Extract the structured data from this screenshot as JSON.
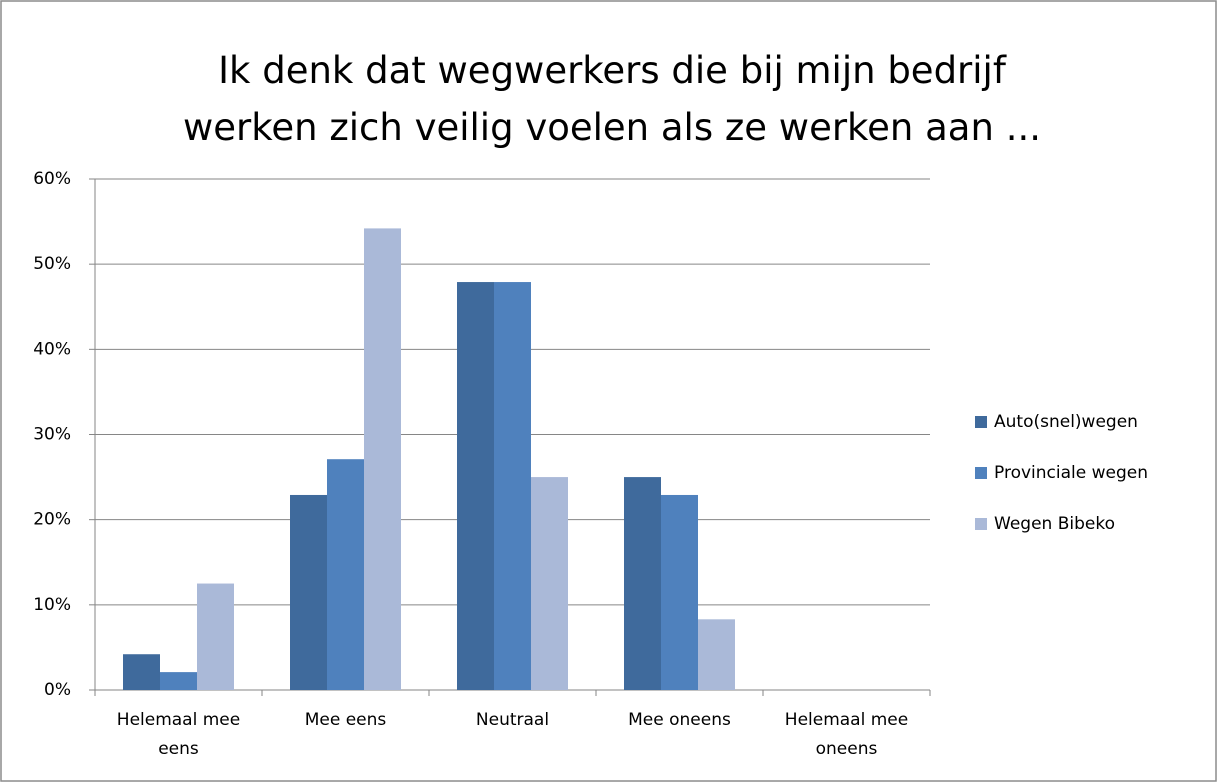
{
  "chart_data": {
    "type": "bar",
    "title": "Ik denk dat wegwerkers die bij mijn bedrijf werken zich veilig voelen als ze werken aan ...",
    "categories": [
      "Helemaal mee eens",
      "Mee eens",
      "Neutraal",
      "Mee oneens",
      "Helemaal mee oneens"
    ],
    "series": [
      {
        "name": "Auto(snel)wegen",
        "color": "#3f6a9c",
        "values": [
          4.2,
          22.9,
          47.9,
          25,
          0
        ]
      },
      {
        "name": "Provinciale wegen",
        "color": "#4f81bd",
        "values": [
          2.1,
          27.1,
          47.9,
          22.9,
          0
        ]
      },
      {
        "name": "Wegen Bibeko",
        "color": "#aab9d8",
        "values": [
          12.5,
          54.2,
          25,
          8.3,
          0
        ]
      }
    ],
    "ylim": [
      0,
      60
    ],
    "yticks": [
      {
        "value": 0,
        "label": "0%"
      },
      {
        "value": 10,
        "label": "10%"
      },
      {
        "value": 20,
        "label": "20%"
      },
      {
        "value": 30,
        "label": "30%"
      },
      {
        "value": 40,
        "label": "40%"
      },
      {
        "value": 50,
        "label": "50%"
      },
      {
        "value": 60,
        "label": "60%"
      }
    ],
    "grid": true,
    "legend": "right"
  }
}
